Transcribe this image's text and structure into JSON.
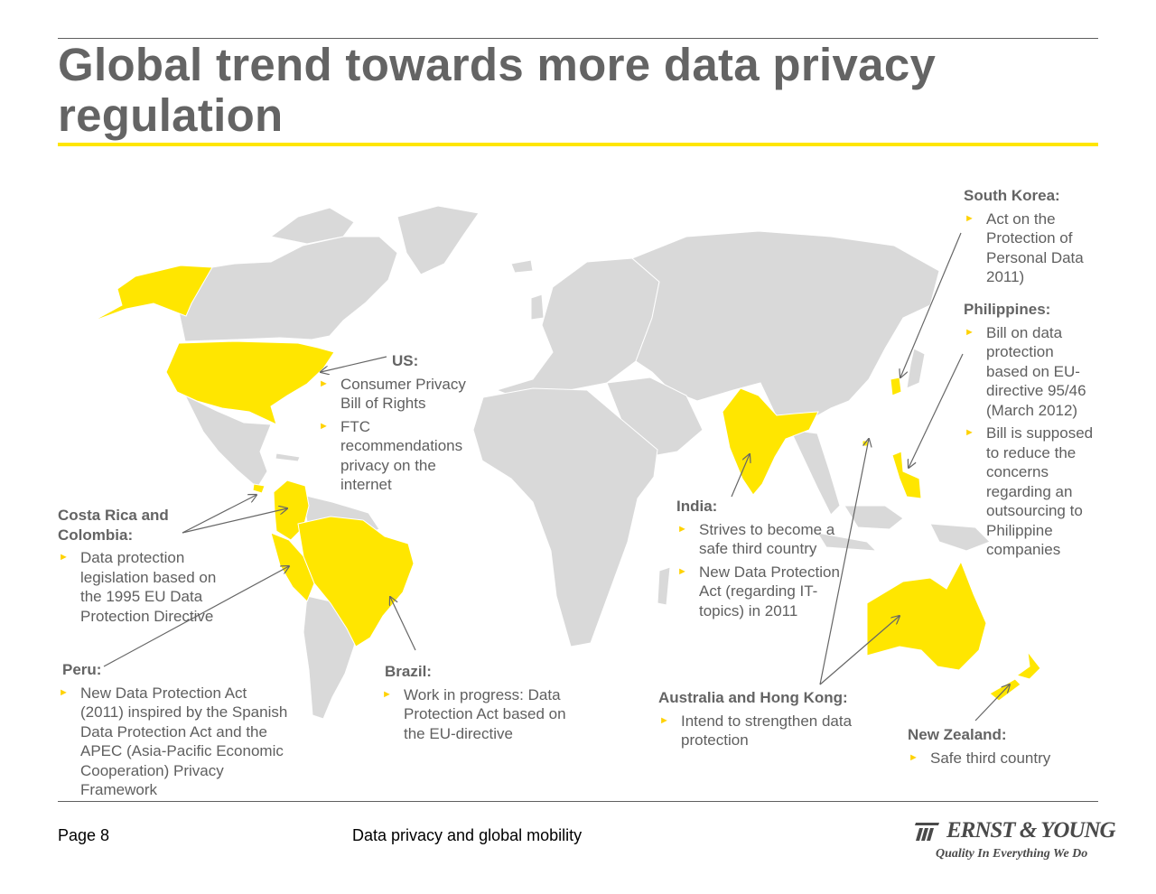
{
  "title": "Global trend towards more data privacy regulation",
  "colors": {
    "highlight": "#ffe600",
    "land": "#d9d9d9",
    "text": "#5f5f5f",
    "bullet": "#ffd200"
  },
  "callouts": {
    "us": {
      "heading": "US:",
      "items": [
        "Consumer Privacy Bill of Rights",
        "FTC recommendations privacy on the internet"
      ]
    },
    "south_korea": {
      "heading": "South Korea:",
      "items": [
        "Act on the Protection of Personal Data 2011)"
      ]
    },
    "philippines": {
      "heading": "Philippines:",
      "items": [
        "Bill on data protection based on EU-directive 95/46 (March 2012)",
        "Bill is supposed to reduce the concerns regarding an outsourcing to Philippine companies"
      ]
    },
    "costa_rica": {
      "heading": "Costa Rica and Colombia:",
      "items": [
        "Data protection legislation based on the 1995 EU Data Protection Directive"
      ]
    },
    "peru": {
      "heading": "Peru:",
      "items": [
        "New Data Protection Act (2011) inspired by the Spanish Data Protection Act and the APEC (Asia-Pacific Economic Cooperation) Privacy Framework"
      ]
    },
    "brazil": {
      "heading": "Brazil:",
      "items": [
        "Work in progress: Data Protection Act based on the EU-directive"
      ]
    },
    "india": {
      "heading": "India:",
      "items": [
        "Strives to become a safe third country",
        "New Data Protection Act (regarding IT-topics) in 2011"
      ]
    },
    "australia_hk": {
      "heading": "Australia and Hong Kong:",
      "items": [
        "Intend to strengthen data protection"
      ]
    },
    "new_zealand": {
      "heading": "New Zealand:",
      "items": [
        "Safe third country"
      ]
    }
  },
  "footer": {
    "page": "Page 8",
    "title": "Data privacy and global mobility"
  },
  "logo": {
    "name": "ERNST & YOUNG",
    "tagline": "Quality In Everything We Do"
  }
}
